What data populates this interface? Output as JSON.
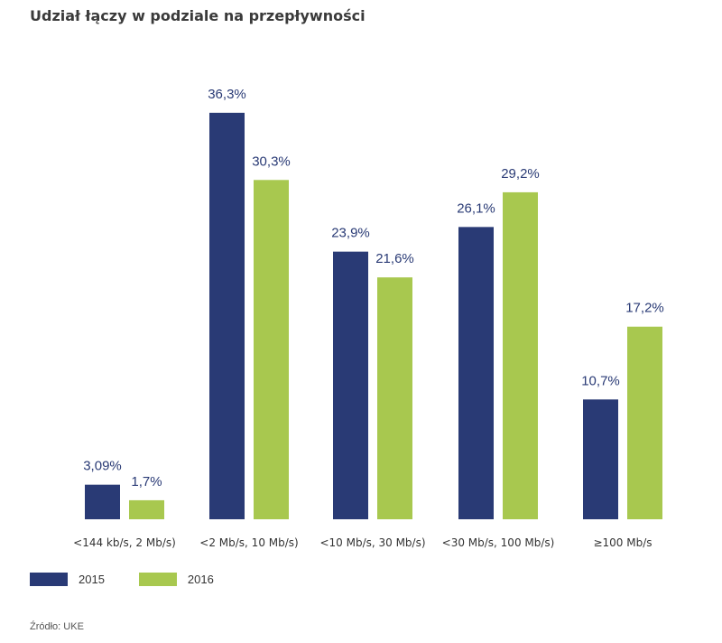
{
  "chart_data": {
    "type": "bar",
    "title": "Udział łączy w podziale na przepływności",
    "categories": [
      "<144 kb/s, 2 Mb/s)",
      "<2 Mb/s, 10 Mb/s)",
      "<10 Mb/s, 30 Mb/s)",
      "<30 Mb/s, 100 Mb/s)",
      "≥100 Mb/s"
    ],
    "series": [
      {
        "name": "2015",
        "color": "#293a75",
        "values": [
          3.09,
          36.3,
          23.9,
          26.1,
          10.7
        ],
        "labels": [
          "3,09%",
          "36,3%",
          "23,9%",
          "26,1%",
          "10,7%"
        ]
      },
      {
        "name": "2016",
        "color": "#a8c84f",
        "values": [
          1.7,
          30.3,
          21.6,
          29.2,
          17.2
        ],
        "labels": [
          "1,7%",
          "30,3%",
          "21,6%",
          "29,2%",
          "17,2%"
        ]
      }
    ],
    "xlabel": "",
    "ylabel": "",
    "ylim": [
      0,
      40
    ],
    "grid": false,
    "legend_position": "bottom-left"
  },
  "source": "Źródło: UKE"
}
